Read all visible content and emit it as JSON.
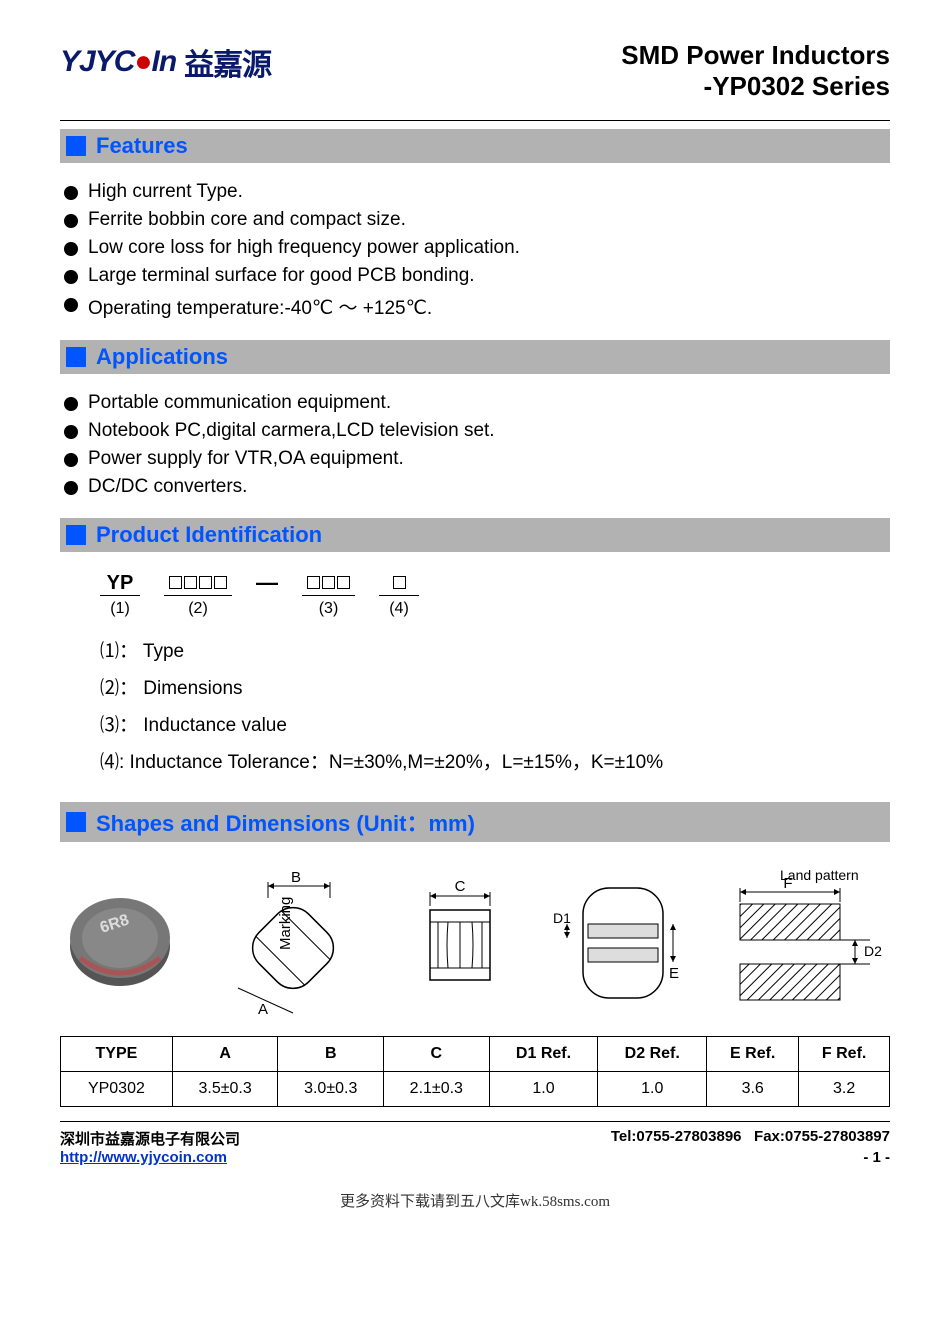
{
  "header": {
    "logo_main": "YJYC",
    "logo_accent": "●",
    "logo_tail": "In",
    "logo_cn": "益嘉源",
    "title_line1": "SMD Power Inductors",
    "title_line2": "-YP0302 Series"
  },
  "sections": {
    "features": {
      "title": "Features",
      "items": [
        "High current Type.",
        "Ferrite bobbin core and compact size.",
        "Low core loss for high frequency power application.",
        "Large terminal surface for good PCB bonding.",
        "Operating temperature:-40℃ ～ +125℃."
      ]
    },
    "applications": {
      "title": "Applications",
      "items": [
        "Portable communication equipment.",
        "Notebook PC,digital carmera,LCD television set.",
        "Power supply for VTR,OA equipment.",
        "DC/DC converters."
      ]
    },
    "product_ident": {
      "title": "Product Identification",
      "code_parts": [
        {
          "top": "YP",
          "bot": "(1)"
        },
        {
          "top_boxes": 4,
          "bot": "(2)"
        },
        {
          "top_sep": "—",
          "top_boxes": 3,
          "bot": "(3)"
        },
        {
          "top_boxes": 1,
          "bot": "(4)"
        }
      ],
      "legend": [
        "⑴： Type",
        "⑵： Dimensions",
        "⑶： Inductance value",
        "⑷:  Inductance Tolerance：N=±30%,M=±20%，L=±15%，K=±10%"
      ]
    },
    "shapes": {
      "title": "Shapes and Dimensions (Unit：mm)",
      "labels": {
        "marking": "Marking",
        "land_pattern": "Land pattern",
        "A": "A",
        "B": "B",
        "C": "C",
        "D1": "D1",
        "D2": "D2",
        "E": "E",
        "F": "F",
        "product_mark": "6R8"
      }
    }
  },
  "dims_table": {
    "columns": [
      "TYPE",
      "A",
      "B",
      "C",
      "D1 Ref.",
      "D2 Ref.",
      "E Ref.",
      "F Ref."
    ],
    "rows": [
      [
        "YP0302",
        "3.5±0.3",
        "3.0±0.3",
        "2.1±0.3",
        "1.0",
        "1.0",
        "3.6",
        "3.2"
      ]
    ]
  },
  "footer": {
    "company": "深圳市益嘉源电子有限公司",
    "tel": "Tel:0755-27803896",
    "fax": "Fax:0755-27803897",
    "url": "http://www.yjycoin.com",
    "page": "- 1 -",
    "watermark": "更多资料下载请到五八文库wk.58sms.com"
  },
  "colors": {
    "accent_blue": "#0055ff",
    "section_bg": "#b2b2b2",
    "logo_navy": "#0a1a6a",
    "logo_red": "#c00"
  }
}
